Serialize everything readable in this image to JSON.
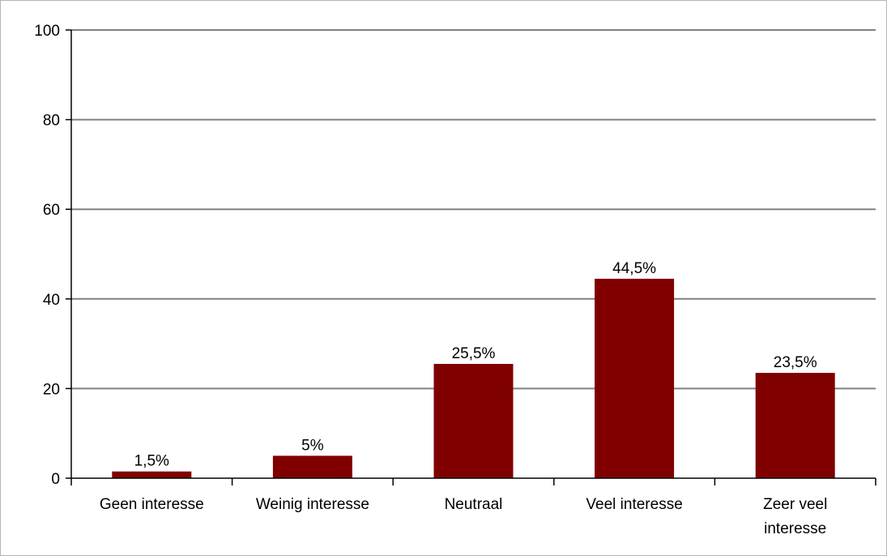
{
  "chart_data": {
    "type": "bar",
    "categories": [
      [
        "Geen interesse"
      ],
      [
        "Weinig interesse"
      ],
      [
        "Neutraal"
      ],
      [
        "Veel interesse"
      ],
      [
        "Zeer veel",
        "interesse"
      ]
    ],
    "values": [
      1.5,
      5,
      25.5,
      44.5,
      23.5
    ],
    "data_labels": [
      "1,5%",
      "5%",
      "25,5%",
      "44,5%",
      "23,5%"
    ],
    "yticks": [
      0,
      20,
      40,
      60,
      80,
      100
    ],
    "ylim": [
      0,
      100
    ],
    "title": "",
    "xlabel": "",
    "ylabel": "",
    "grid": true,
    "legend": "none",
    "colors": {
      "bar": "#800000",
      "grid": "#808080",
      "axis": "#000000"
    }
  }
}
